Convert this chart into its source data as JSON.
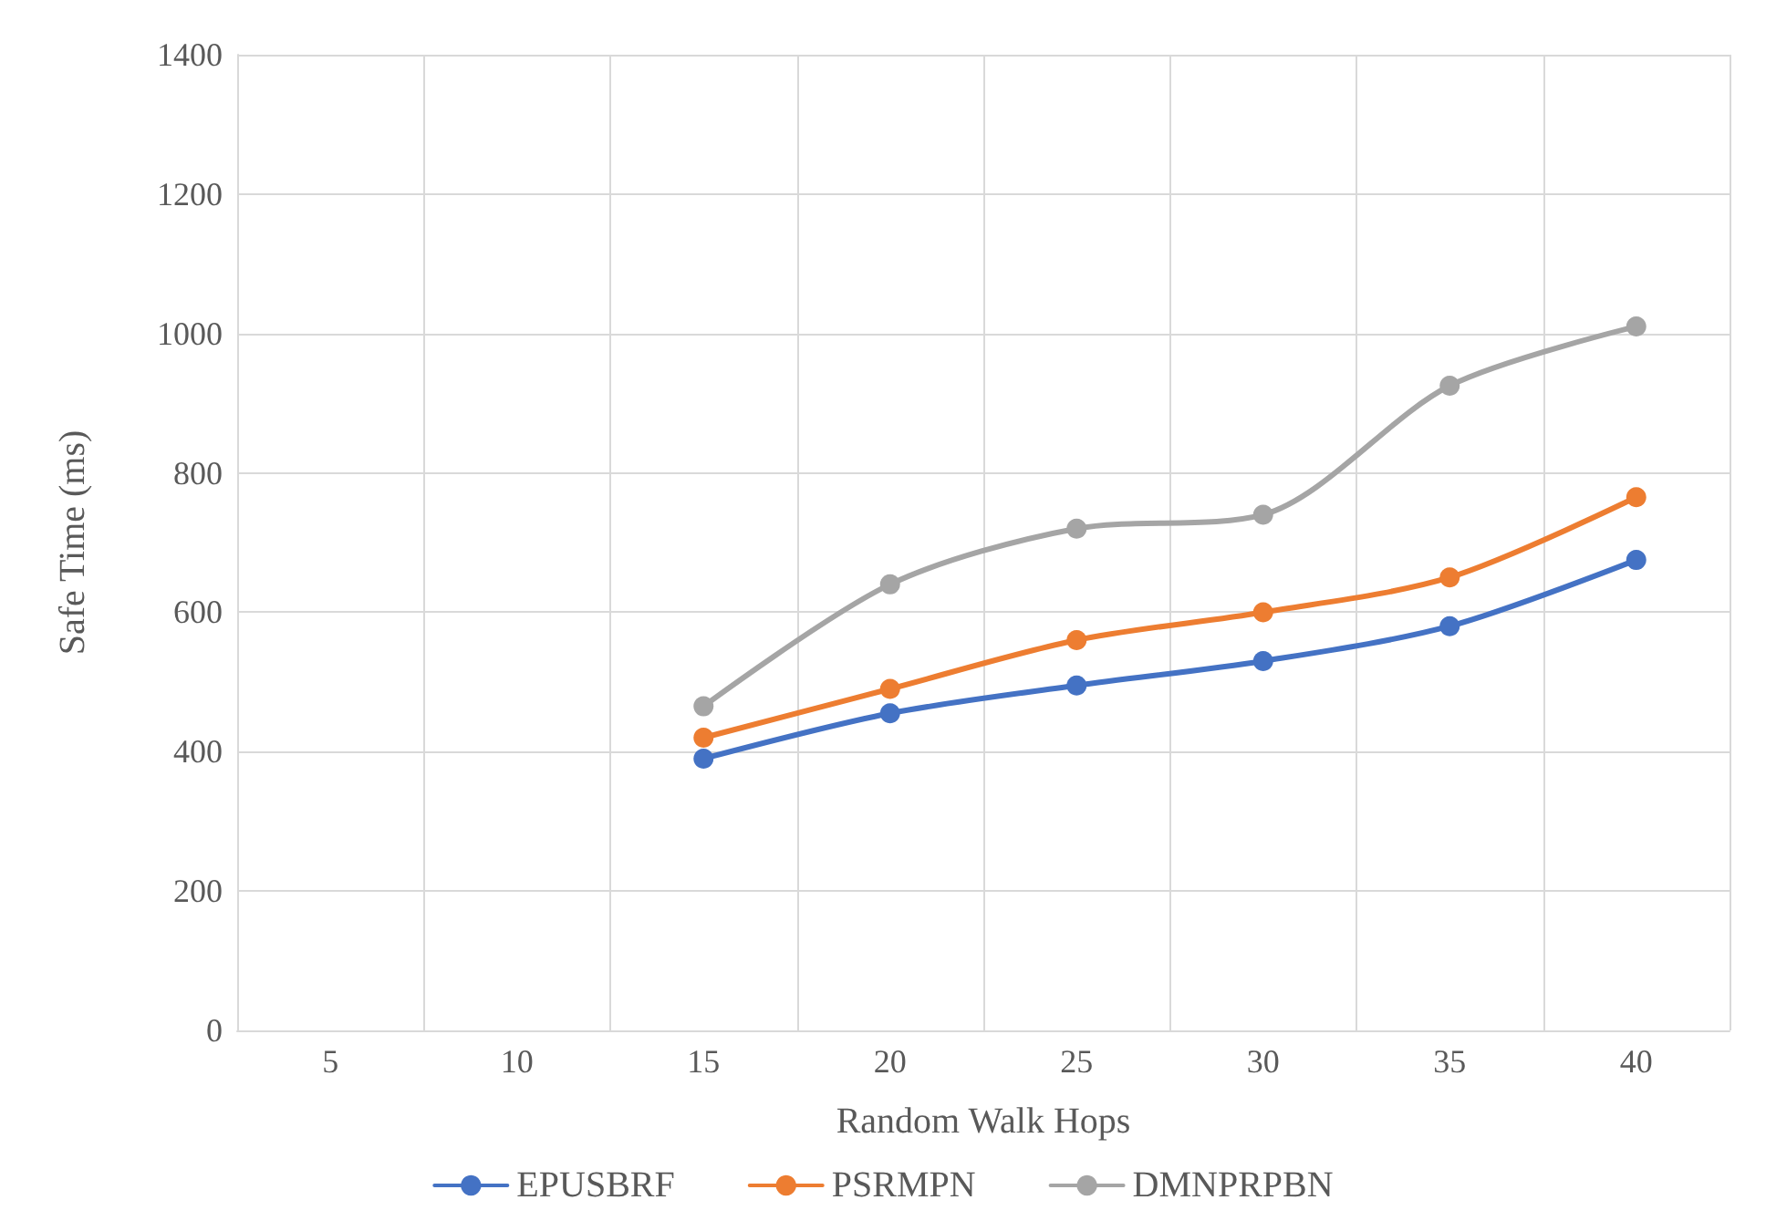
{
  "chart_data": {
    "type": "line",
    "xlabel": "Random Walk Hops",
    "ylabel": "Safe Time (ms)",
    "categories": [
      "5",
      "10",
      "15",
      "20",
      "25",
      "30",
      "35",
      "40"
    ],
    "series": [
      {
        "name": "EPUSBRF",
        "color": "#4472c4",
        "values": [
          null,
          null,
          390,
          455,
          495,
          530,
          580,
          675
        ]
      },
      {
        "name": "PSRMPN",
        "color": "#ed7d31",
        "values": [
          null,
          null,
          420,
          490,
          560,
          600,
          650,
          765
        ]
      },
      {
        "name": "DMNPRPBN",
        "color": "#a5a5a5",
        "values": [
          null,
          null,
          465,
          640,
          720,
          740,
          925,
          1010
        ]
      }
    ],
    "ylim": [
      0,
      1400
    ],
    "yticks": [
      0,
      200,
      400,
      600,
      800,
      1000,
      1200,
      1400
    ],
    "grid": true,
    "legend": "bottom",
    "marker": "circle",
    "line_style": "solid"
  }
}
